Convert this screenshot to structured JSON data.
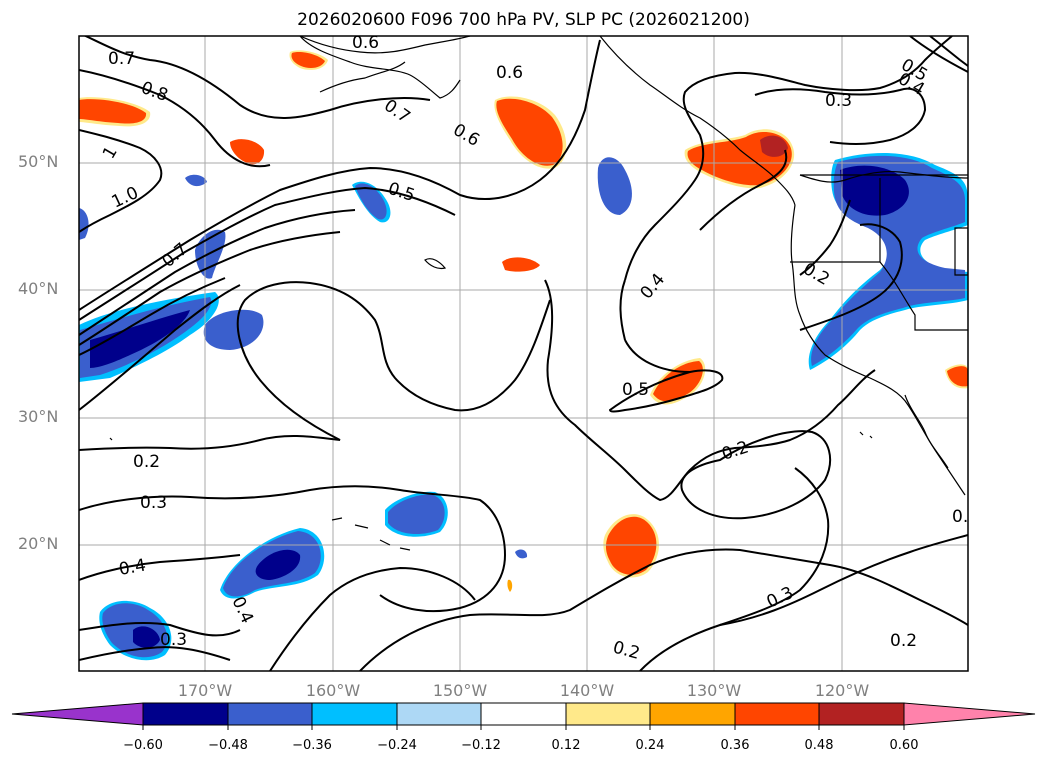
{
  "title": "2026020600 F096 700 hPa PV, SLP PC (2026021200)",
  "lat_labels": [
    "50°N",
    "40°N",
    "30°N",
    "20°N"
  ],
  "lon_labels": [
    "170°W",
    "160°W",
    "150°W",
    "140°W",
    "130°W",
    "120°W"
  ],
  "contour_labels": [
    "0.7",
    "0.8",
    "1",
    "1.0",
    "0.7",
    "0.6",
    "0.7",
    "0.6",
    "0.5",
    "0.6",
    "0.5",
    "0.4",
    "0.3",
    "0.2",
    "0.4",
    "0.5",
    "0.2",
    "0.2",
    "0.3",
    "0.4",
    "0.4",
    "0.3",
    "0.3",
    "0.2",
    "0.2",
    "0."
  ],
  "colorbar": {
    "ticks": [
      "−0.60",
      "−0.48",
      "−0.36",
      "−0.24",
      "−0.12",
      "0.12",
      "0.24",
      "0.36",
      "0.48",
      "0.60"
    ],
    "colors": [
      "#9933cc",
      "#00008b",
      "#3a5fcd",
      "#00bfff",
      "#add8f5",
      "#ffffff",
      "#ffe98a",
      "#ffa500",
      "#ff4500",
      "#b22222",
      "#ff82ab"
    ]
  }
}
